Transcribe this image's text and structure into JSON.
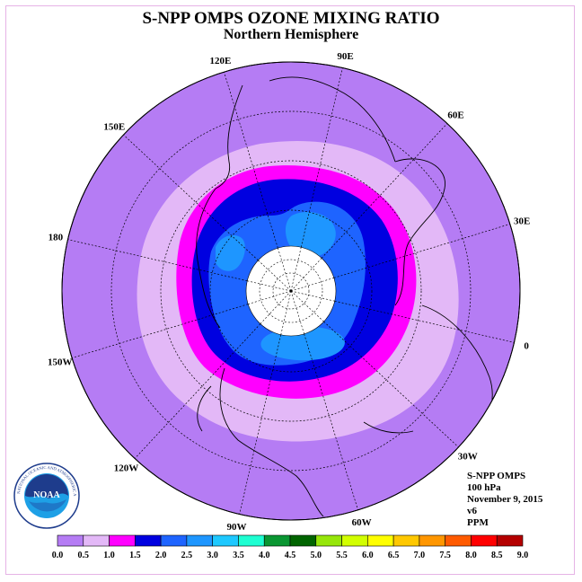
{
  "title": "S-NPP OMPS OZONE MIXING RATIO",
  "subtitle": "Northern Hemisphere",
  "longitude_labels": [
    {
      "label": "90E",
      "lon": 90
    },
    {
      "label": "60E",
      "lon": 60
    },
    {
      "label": "30E",
      "lon": 30
    },
    {
      "label": "0",
      "lon": 0
    },
    {
      "label": "30W",
      "lon": -30
    },
    {
      "label": "60W",
      "lon": -60
    },
    {
      "label": "90W",
      "lon": -90
    },
    {
      "label": "120W",
      "lon": -120
    },
    {
      "label": "150W",
      "lon": -150
    },
    {
      "label": "180",
      "lon": 180
    },
    {
      "label": "150E",
      "lon": 150
    },
    {
      "label": "120E",
      "lon": 120
    }
  ],
  "info": {
    "instrument": "S-NPP OMPS",
    "level": "100 hPa",
    "date": "November 9, 2015",
    "version": "v6",
    "units": "PPM"
  },
  "logo": {
    "name": "NOAA",
    "ring_text": "NATIONAL OCEANIC AND ATMOSPHERIC ADMINISTRATION · U.S. DEPARTMENT OF COMMERCE"
  },
  "colorbar": {
    "ticks": [
      "0.0",
      "0.5",
      "1.0",
      "1.5",
      "2.0",
      "2.5",
      "3.0",
      "3.5",
      "4.0",
      "4.5",
      "5.0",
      "5.5",
      "6.0",
      "6.5",
      "7.0",
      "7.5",
      "8.0",
      "8.5",
      "9.0"
    ],
    "colors": [
      "#b57cf4",
      "#e3b8f7",
      "#ff00ff",
      "#0000e0",
      "#1e64ff",
      "#1e96ff",
      "#1ec8ff",
      "#1effd2",
      "#0a9632",
      "#006400",
      "#96e60a",
      "#d2ff00",
      "#ffff00",
      "#ffc800",
      "#ff9600",
      "#ff5a00",
      "#ff0000",
      "#b40000"
    ]
  },
  "colors": {
    "background_field": "#b57cf4",
    "band_0_5": "#e3b8f7",
    "band_1_0": "#ff00ff",
    "band_1_5": "#0000e0",
    "band_2_0": "#1e64ff",
    "band_2_5": "#1e96ff",
    "no_data": "#ffffff"
  }
}
